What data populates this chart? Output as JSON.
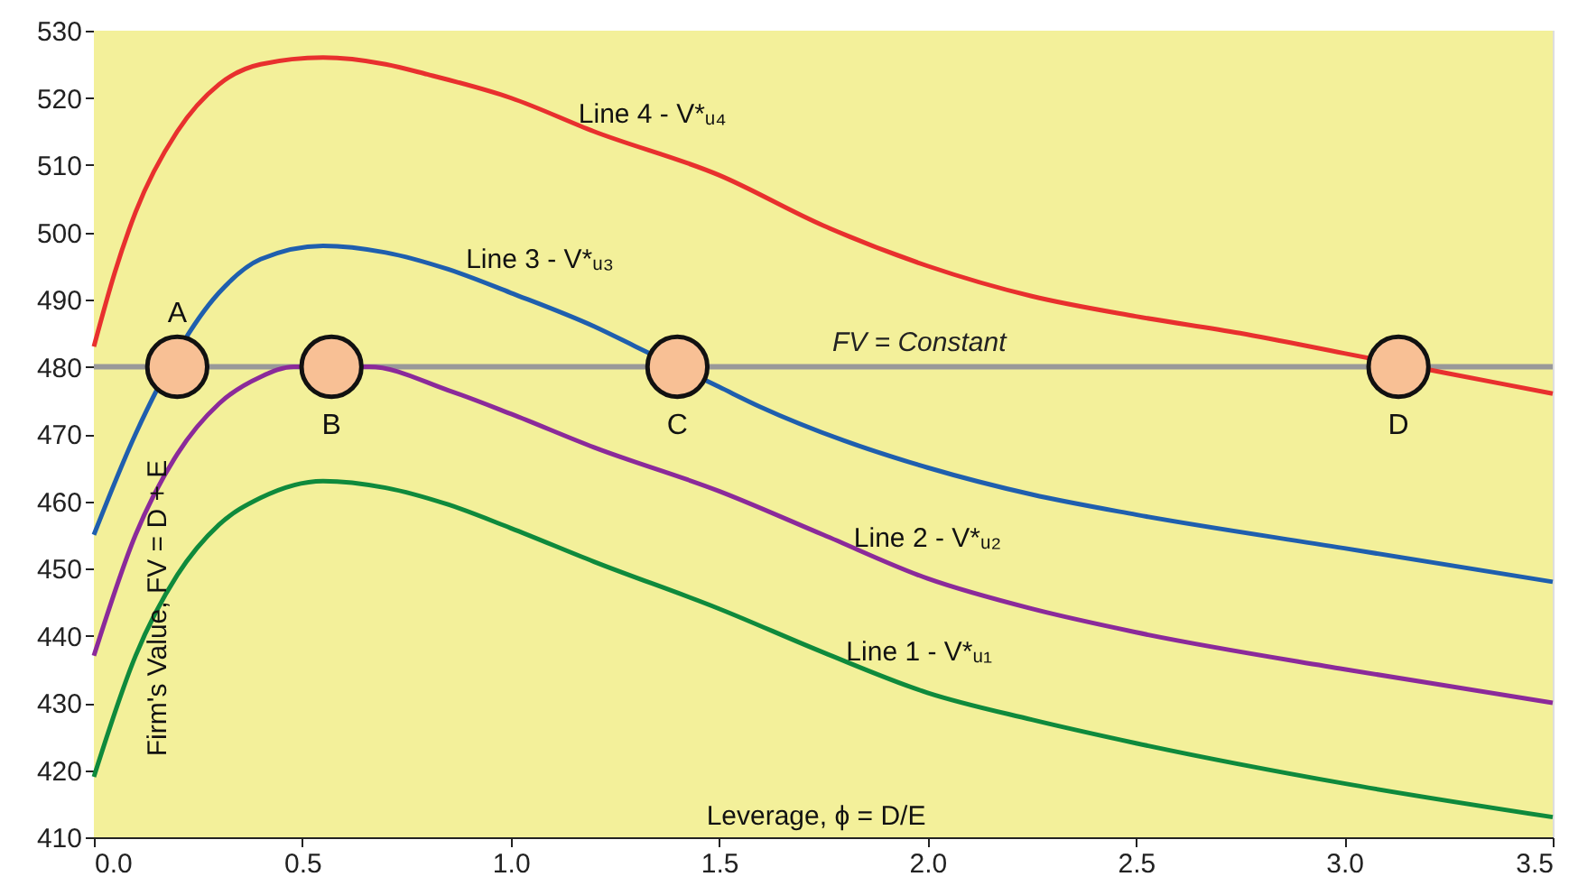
{
  "chart_data": {
    "type": "line",
    "xlabel": "Leverage,  ϕ = D/E",
    "ylabel": "Firm's Value,  FV = D + E",
    "xlim": [
      0,
      3.5
    ],
    "xticks": [
      {
        "value": 0,
        "label": "0.0"
      },
      {
        "value": 0.5,
        "label": "0.5"
      },
      {
        "value": 1,
        "label": "1.0"
      },
      {
        "value": 1.5,
        "label": "1.5"
      },
      {
        "value": 2,
        "label": "2.0"
      },
      {
        "value": 2.5,
        "label": "2.5"
      },
      {
        "value": 3,
        "label": "3.0"
      },
      {
        "value": 3.5,
        "label": "3.5"
      }
    ],
    "ylim": [
      410,
      530
    ],
    "yticks": [
      410,
      420,
      430,
      440,
      450,
      460,
      470,
      480,
      490,
      500,
      510,
      520,
      530
    ],
    "line_style": "solid",
    "marker": "none",
    "series": [
      {
        "name": "Line 4 - V*ᵤ₄",
        "color": "#e8302e",
        "x": [
          0,
          0.05,
          0.1,
          0.2,
          0.3,
          0.4,
          0.55,
          0.7,
          0.8,
          1.0,
          1.2,
          1.5,
          1.75,
          2.0,
          2.25,
          2.5,
          2.75,
          3.0,
          3.25,
          3.5
        ],
        "values": [
          483,
          494,
          503,
          515,
          522,
          525,
          526,
          525,
          523.5,
          520,
          515,
          508.5,
          501,
          495,
          490.5,
          487.5,
          485,
          482,
          479,
          476
        ]
      },
      {
        "name": "Line 3 - V*ᵤ₃",
        "color": "#1f5fae",
        "x": [
          0,
          0.1,
          0.3,
          0.4,
          0.55,
          0.7,
          0.85,
          1.0,
          1.2,
          1.3,
          1.5,
          1.6,
          1.8,
          2.0,
          2.25,
          2.5,
          3.0,
          3.5
        ],
        "values": [
          455,
          470,
          491,
          496,
          498,
          497,
          494.5,
          491,
          486,
          483,
          477,
          474,
          469,
          465,
          461,
          458,
          453,
          448
        ]
      },
      {
        "name": "Line 2 - V*ᵤ₂",
        "color": "#8b2a9a",
        "x": [
          0,
          0.1,
          0.2,
          0.3,
          0.4,
          0.48,
          0.66,
          0.85,
          1.0,
          1.2,
          1.5,
          1.75,
          2.0,
          2.25,
          2.5,
          3.0,
          3.5
        ],
        "values": [
          437,
          455,
          467,
          474.5,
          478.5,
          480,
          480,
          476.5,
          473,
          468,
          461.5,
          455,
          448.5,
          444,
          440.5,
          435,
          430
        ]
      },
      {
        "name": "Line 1 - V*ᵤ₁",
        "color": "#0f8a3c",
        "x": [
          0,
          0.1,
          0.2,
          0.3,
          0.4,
          0.55,
          0.7,
          0.85,
          1.0,
          1.2,
          1.5,
          1.75,
          2.0,
          2.25,
          2.5,
          3.0,
          3.5
        ],
        "values": [
          419,
          437,
          449,
          456.5,
          460.5,
          463,
          462,
          459.5,
          456,
          451,
          444,
          437.5,
          431.5,
          427.5,
          424,
          418,
          413
        ]
      },
      {
        "type": "scatter",
        "marker": "circle",
        "color": "#f8c095",
        "x": [
          0.2,
          0.57,
          1.4,
          3.13
        ],
        "values": [
          480,
          480,
          480,
          480
        ]
      }
    ],
    "ref_lines": [
      {
        "axis": "y",
        "value": 480,
        "label": "FV = Constant",
        "color": "#999999",
        "line_style": "solid"
      }
    ],
    "annotations": [
      {
        "text": "A",
        "x": 0.2,
        "y": 480
      },
      {
        "text": "B",
        "x": 0.57,
        "y": 480
      },
      {
        "text": "C",
        "x": 1.4,
        "y": 480
      },
      {
        "text": "D",
        "x": 3.13,
        "y": 480
      }
    ]
  }
}
